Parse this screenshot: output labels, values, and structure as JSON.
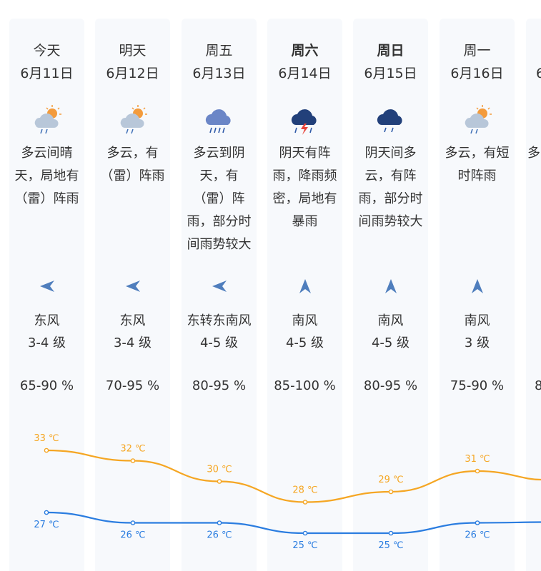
{
  "days": [
    {
      "weekday": "今天",
      "date": "6月11日",
      "bold": false,
      "icon": "partly-cloudy-rain-icon",
      "desc": "多云间晴\n天，局地有\n（雷）阵雨",
      "wind_icon": "wind-east-arrow-icon",
      "wind_dir": "东风",
      "wind_level": "3-4 级",
      "humidity": "65-90 %",
      "high": "33 ℃",
      "low": "27 ℃"
    },
    {
      "weekday": "明天",
      "date": "6月12日",
      "bold": false,
      "icon": "partly-cloudy-rain-icon",
      "desc": "多云，有\n（雷）阵雨",
      "wind_icon": "wind-east-arrow-icon",
      "wind_dir": "东风",
      "wind_level": "3-4 级",
      "humidity": "70-95 %",
      "high": "32 ℃",
      "low": "26 ℃"
    },
    {
      "weekday": "周五",
      "date": "6月13日",
      "bold": false,
      "icon": "cloudy-heavy-rain-icon",
      "desc": "多云到阴\n天，有\n（雷）阵\n雨，部分时\n间雨势较大",
      "wind_icon": "wind-east-arrow-icon",
      "wind_dir": "东转东南风",
      "wind_level": "4-5 级",
      "humidity": "80-95 %",
      "high": "30 ℃",
      "low": "26 ℃"
    },
    {
      "weekday": "周六",
      "date": "6月14日",
      "bold": true,
      "icon": "thunderstorm-icon",
      "desc": "阴天有阵\n雨，降雨频\n密，局地有\n暴雨",
      "wind_icon": "wind-south-arrow-icon",
      "wind_dir": "南风",
      "wind_level": "4-5 级",
      "humidity": "85-100 %",
      "high": "28 ℃",
      "low": "25 ℃"
    },
    {
      "weekday": "周日",
      "date": "6月15日",
      "bold": true,
      "icon": "cloudy-rain-icon",
      "desc": "阴天间多\n云，有阵\n雨，部分时\n间雨势较大",
      "wind_icon": "wind-south-arrow-icon",
      "wind_dir": "南风",
      "wind_level": "4-5 级",
      "humidity": "80-95 %",
      "high": "29 ℃",
      "low": "25 ℃"
    },
    {
      "weekday": "周一",
      "date": "6月16日",
      "bold": false,
      "icon": "partly-cloudy-rain-icon",
      "desc": "多云，有短\n时阵雨",
      "wind_icon": "wind-south-arrow-icon",
      "wind_dir": "南风",
      "wind_level": "3 级",
      "humidity": "75-90 %",
      "high": "31 ℃",
      "low": "26 ℃"
    },
    {
      "weekday": "",
      "date": "6",
      "bold": false,
      "icon": "",
      "desc": "多",
      "wind_icon": "",
      "wind_dir": "",
      "wind_level": "",
      "humidity": "8",
      "high": "",
      "low": ""
    }
  ],
  "chart_data": {
    "type": "line",
    "categories": [
      "6月11日",
      "6月12日",
      "6月13日",
      "6月14日",
      "6月15日",
      "6月16日"
    ],
    "series": [
      {
        "values": [
          33,
          32,
          30,
          28,
          29,
          31
        ],
        "color": "#f5a623"
      },
      {
        "values": [
          27,
          26,
          26,
          25,
          25,
          26
        ],
        "color": "#2b7de0"
      }
    ],
    "unit": "℃"
  }
}
